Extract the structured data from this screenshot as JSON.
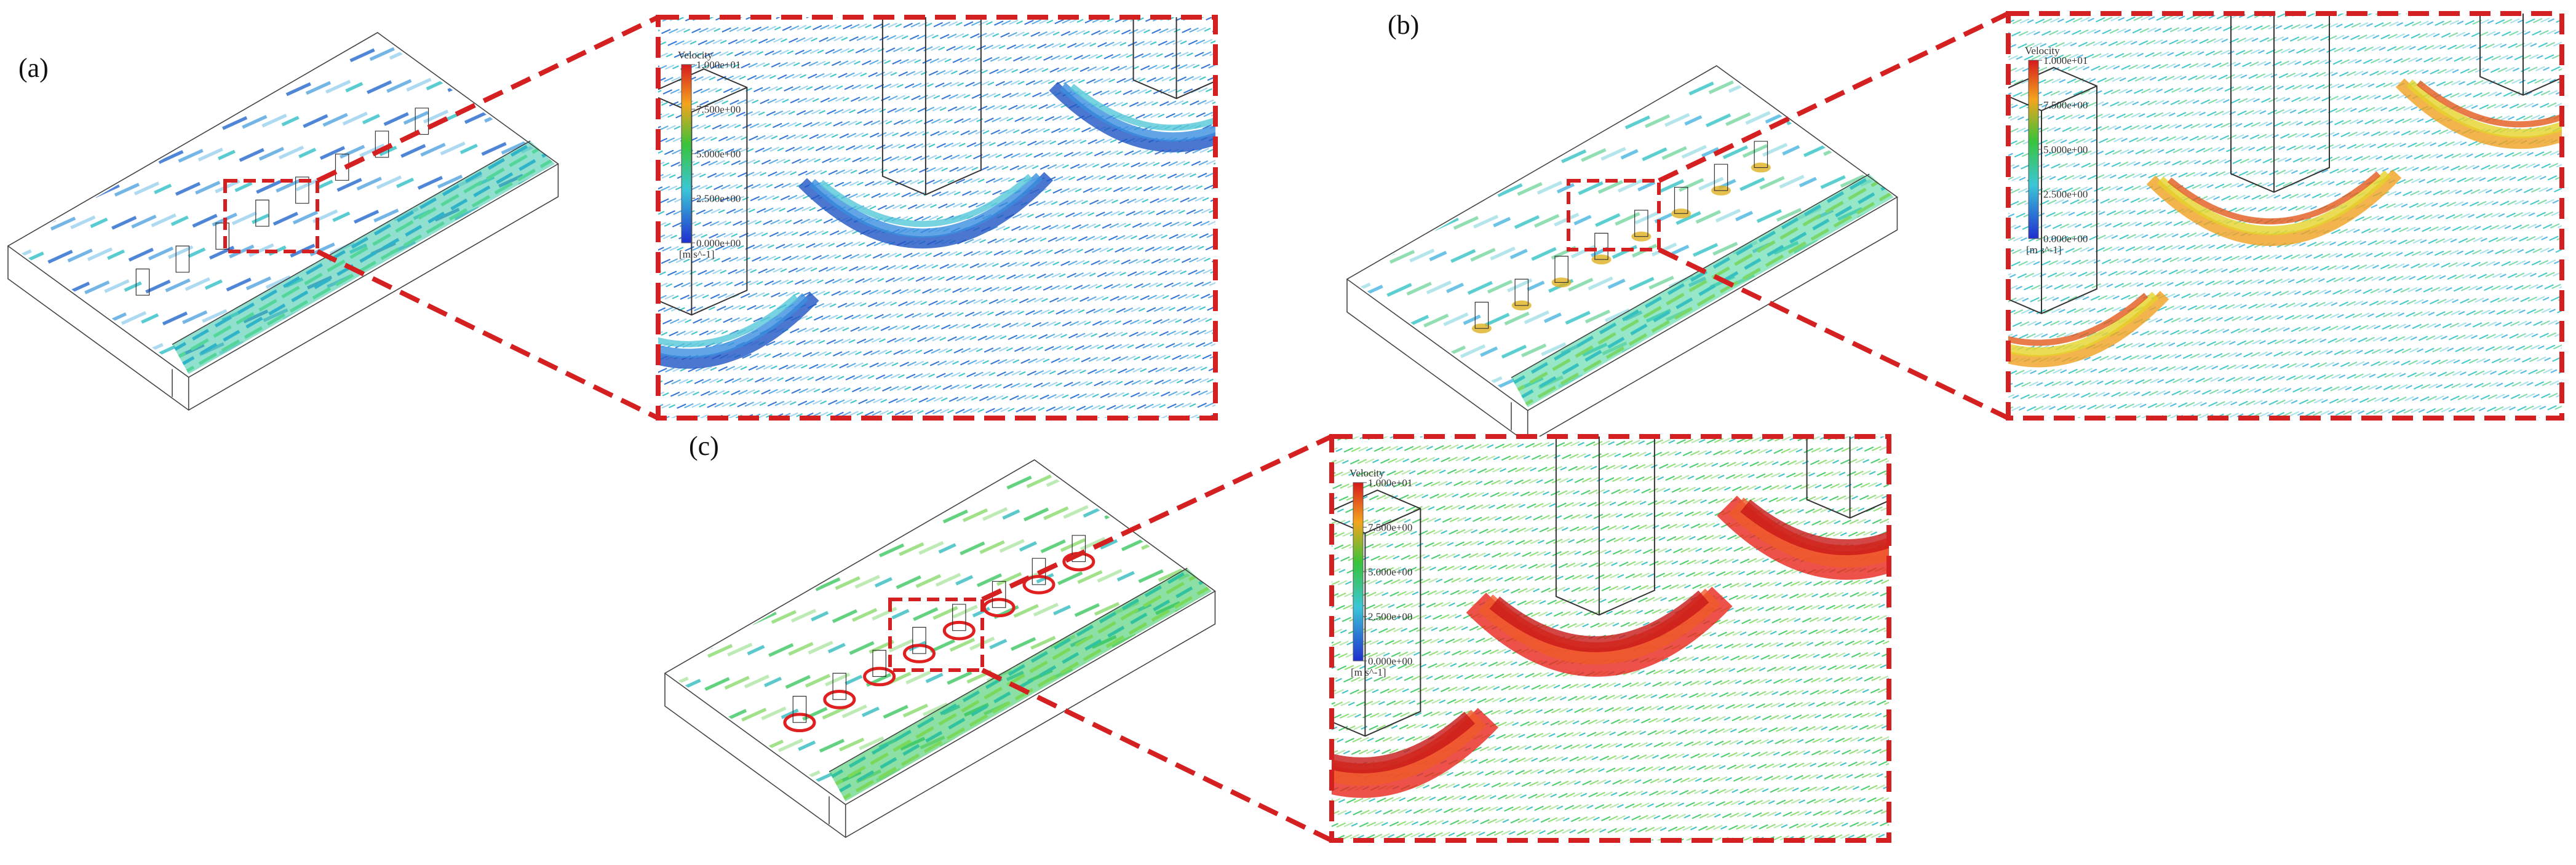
{
  "panels": [
    {
      "label": "(a)",
      "legend": {
        "title": "Velocity",
        "ticks": [
          "1.000e+01",
          "7.500e+00",
          "5.000e+00",
          "2.500e+00",
          "0.000e+00"
        ],
        "unit": "[m s^-1]"
      }
    },
    {
      "label": "(b)",
      "legend": {
        "title": "Velocity",
        "ticks": [
          "1.000e+01",
          "7.500e+00",
          "5.000e+00",
          "2.500e+00",
          "0.000e+00"
        ],
        "unit": "[m s^-1]"
      }
    },
    {
      "label": "(c)",
      "legend": {
        "title": "Velocity",
        "ticks": [
          "1.000e+01",
          "7.500e+00",
          "5.000e+00",
          "2.500e+00",
          "0.000e+00"
        ],
        "unit": "[m s^-1]"
      }
    }
  ]
}
